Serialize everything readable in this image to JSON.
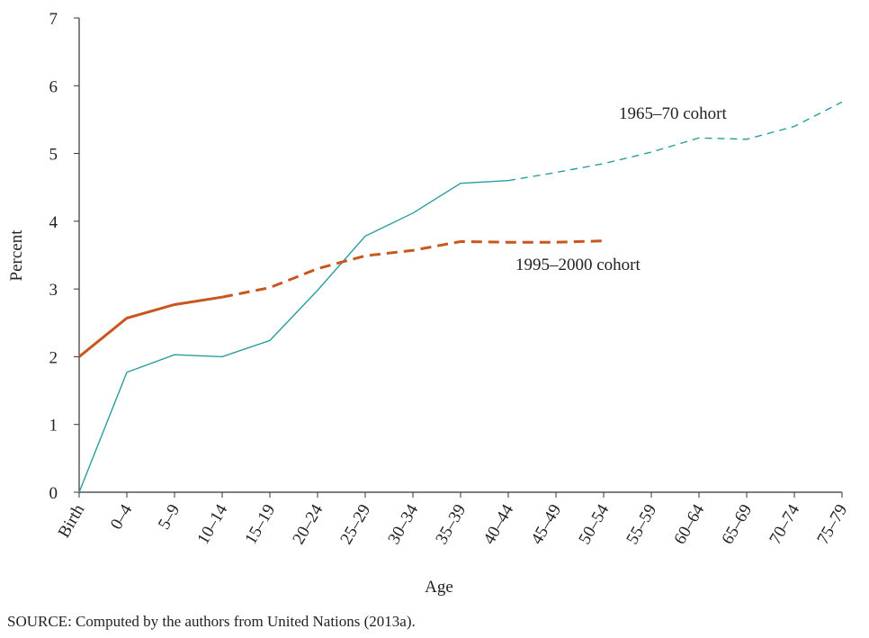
{
  "chart_data": {
    "type": "line",
    "x_label": "Age",
    "y_label": "Percent",
    "source": "SOURCE: Computed by the authors from United Nations (2013a).",
    "categories": [
      "Birth",
      "0–4",
      "5–9",
      "10–14",
      "15–19",
      "20–24",
      "25–29",
      "30–34",
      "35–39",
      "40–44",
      "45–49",
      "50–54",
      "55–59",
      "60–64",
      "65–69",
      "70–74",
      "75–79"
    ],
    "series": [
      {
        "name": "1965–70 cohort",
        "color": "#2a9d9f",
        "dashed_from": 9,
        "values": [
          0,
          1.77,
          2.03,
          2.0,
          2.24,
          2.98,
          3.78,
          4.12,
          4.56,
          4.6,
          4.72,
          4.85,
          5.02,
          5.23,
          5.21,
          5.4,
          5.76
        ]
      },
      {
        "name": "1995–2000 cohort",
        "color": "#c8561e",
        "dashed_from": 3,
        "values": [
          2.0,
          2.57,
          2.77,
          2.88,
          3.02,
          3.3,
          3.49,
          3.57,
          3.7,
          3.69,
          3.69,
          3.71,
          null,
          null,
          null,
          null,
          null
        ]
      }
    ],
    "ylim": [
      0,
      7
    ],
    "yticks": [
      0,
      1,
      2,
      3,
      4,
      5,
      6,
      7
    ]
  }
}
